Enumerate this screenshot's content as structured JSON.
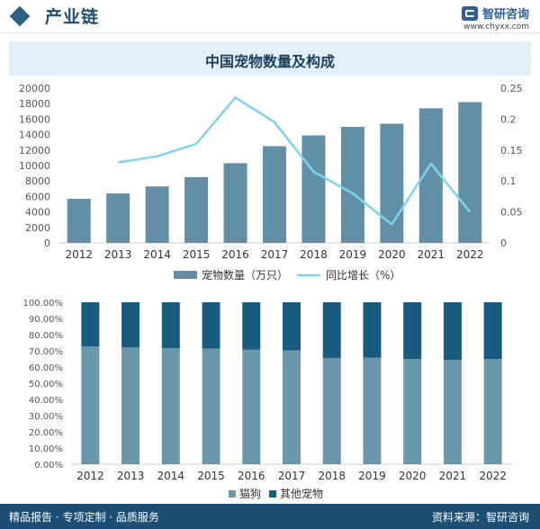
{
  "header": {
    "title": "产业链",
    "logo_name": "智研咨询",
    "logo_url": "www.chyxx.com"
  },
  "footer": {
    "left_text": "精品报告 · 专项定制 · 品质服务",
    "right_text": "资料来源：智研咨询"
  },
  "colors": {
    "bar": "#6190a6",
    "line": "#7dd3ef",
    "cat": "#6b97ab",
    "other": "#195a7f",
    "header": "#1d4f74"
  },
  "chart_data": [
    {
      "type": "bar",
      "title": "中国宠物数量及构成",
      "categories": [
        "2012",
        "2013",
        "2014",
        "2015",
        "2016",
        "2017",
        "2018",
        "2019",
        "2020",
        "2021",
        "2022"
      ],
      "series": [
        {
          "name": "宠物数量（万只）",
          "type": "bar",
          "axis": "left",
          "values": [
            5700,
            6400,
            7300,
            8500,
            10300,
            12500,
            13900,
            15000,
            15400,
            17400,
            18200
          ]
        },
        {
          "name": "同比增长（%）",
          "type": "line",
          "axis": "right",
          "values": [
            null,
            0.13,
            0.14,
            0.16,
            0.235,
            0.195,
            0.115,
            0.08,
            0.03,
            0.128,
            0.05
          ]
        }
      ],
      "left_axis": {
        "ylim": [
          0,
          20000
        ],
        "ticks": [
          "0",
          "2000",
          "4000",
          "6000",
          "8000",
          "10000",
          "12000",
          "14000",
          "16000",
          "18000",
          "20000"
        ]
      },
      "right_axis": {
        "ylim": [
          0,
          0.25
        ],
        "ticks": [
          "0",
          "0.05",
          "0.1",
          "0.15",
          "0.2",
          "0.25"
        ]
      },
      "legend_position": "bottom"
    },
    {
      "type": "bar",
      "stacked": true,
      "categories": [
        "2012",
        "2013",
        "2014",
        "2015",
        "2016",
        "2017",
        "2018",
        "2019",
        "2020",
        "2021",
        "2022"
      ],
      "series": [
        {
          "name": "猫狗",
          "values": [
            72.7,
            72.1,
            71.7,
            71.3,
            70.7,
            70.3,
            65.6,
            65.8,
            65.0,
            64.5,
            65.0
          ]
        },
        {
          "name": "其他宠物",
          "values": [
            27.3,
            27.9,
            28.3,
            28.7,
            29.3,
            29.7,
            34.4,
            34.2,
            35.0,
            35.5,
            35.0
          ]
        }
      ],
      "y_axis": {
        "ylim": [
          0,
          100
        ],
        "ticks": [
          "0.00%",
          "10.00%",
          "20.00%",
          "30.00%",
          "40.00%",
          "50.00%",
          "60.00%",
          "70.00%",
          "80.00%",
          "90.00%",
          "100.00%"
        ]
      },
      "legend_position": "bottom"
    }
  ]
}
